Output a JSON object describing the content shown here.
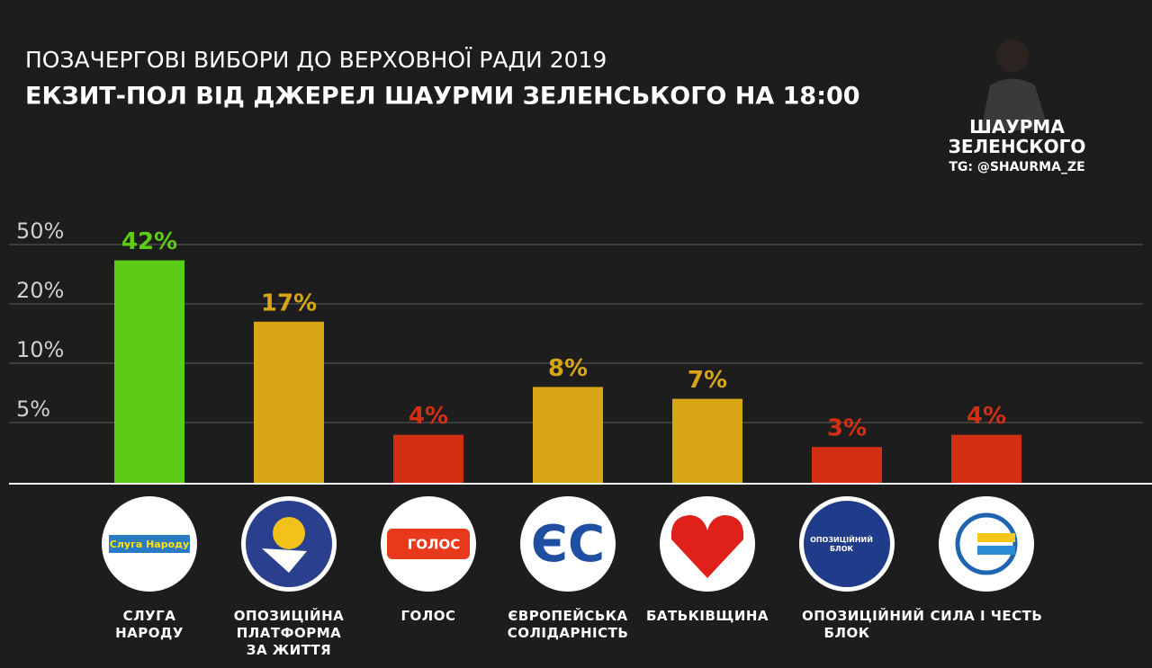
{
  "chart_data": {
    "type": "bar",
    "title": "ПОЗАЧЕРГОВІ ВИБОРИ ДО ВЕРХОВНОЇ РАДИ 2019",
    "subtitle": "ЕКЗИТ-ПОЛ ВІД ДЖЕРЕЛ ШАУРМИ ЗЕЛЕНСЬКОГО НА 18:00",
    "brand": "ШАУРМА ЗЕЛЕНСКОГО",
    "brand_handle": "TG: @SHAURMA_ZE",
    "categories": [
      "СЛУГА НАРОДУ",
      "ОПОЗИЦІЙНА ПЛАТФОРМА ЗА ЖИТТЯ",
      "ГОЛОС",
      "ЄВРОПЕЙСЬКА СОЛІДАРНІСТЬ",
      "БАТЬКІВЩИНА",
      "ОПОЗИЦІЙНИЙ БЛОК",
      "СИЛА І ЧЕСТЬ"
    ],
    "logo_texts": [
      "Слуга Народу",
      null,
      "ГОЛОС",
      "ЄС",
      null,
      "ОПОЗИЦІЙНИЙ БЛОК",
      null
    ],
    "values": [
      42,
      17,
      4,
      8,
      7,
      3,
      4
    ],
    "value_labels": [
      "42%",
      "17%",
      "4%",
      "8%",
      "7%",
      "3%",
      "4%"
    ],
    "colors": [
      "#5ccd14",
      "#d8a514",
      "#d32f12",
      "#d8a514",
      "#d8a514",
      "#d32f12",
      "#d32f12"
    ],
    "label_colors": [
      "#5ccd14",
      "#d8a514",
      "#d32f12",
      "#d8a514",
      "#d8a514",
      "#d32f12",
      "#d32f12"
    ],
    "ylim": [
      0,
      50
    ],
    "yticks": [
      {
        "value": 50,
        "label": "50%"
      },
      {
        "value": 20,
        "label": "20%"
      },
      {
        "value": 10,
        "label": "10%"
      },
      {
        "value": 5,
        "label": "5%"
      }
    ],
    "grid": true
  }
}
